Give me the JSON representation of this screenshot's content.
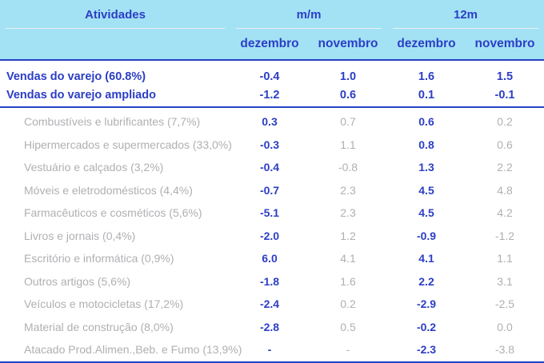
{
  "chart_data": {
    "type": "table",
    "row_header": "Atividades",
    "column_groups": [
      {
        "label": "m/m"
      },
      {
        "label": "12m"
      }
    ],
    "columns": [
      "dezembro",
      "novembro",
      "dezembro",
      "novembro"
    ],
    "summary_rows": [
      {
        "label": "Vendas do varejo (60.8%)",
        "values": [
          "-0.4",
          "1.0",
          "1.6",
          "1.5"
        ]
      },
      {
        "label": "Vendas do varejo ampliado",
        "values": [
          "-1.2",
          "0.6",
          "0.1",
          "-0.1"
        ]
      }
    ],
    "detail_rows": [
      {
        "label": "Combustíveis e lubrificantes (7,7%)",
        "values": [
          "0.3",
          "0.7",
          "0.6",
          "0.2"
        ]
      },
      {
        "label": "Hipermercados e supermercados (33,0%)",
        "values": [
          "-0.3",
          "1.1",
          "0.8",
          "0.6"
        ]
      },
      {
        "label": "Vestuário e calçados (3,2%)",
        "values": [
          "-0.4",
          "-0.8",
          "1.3",
          "2.2"
        ]
      },
      {
        "label": "Móveis e eletrodomésticos (4,4%)",
        "values": [
          "-0.7",
          "2.3",
          "4.5",
          "4.8"
        ]
      },
      {
        "label": "Farmacêuticos e cosméticos (5,6%)",
        "values": [
          "-5.1",
          "2.3",
          "4.5",
          "4.2"
        ]
      },
      {
        "label": "Livros e jornais (0,4%)",
        "values": [
          "-2.0",
          "1.2",
          "-0.9",
          "-1.2"
        ]
      },
      {
        "label": "Escritório e informática (0,9%)",
        "values": [
          "6.0",
          "4.1",
          "4.1",
          "1.1"
        ]
      },
      {
        "label": "Outros artigos (5,6%)",
        "values": [
          "-1.8",
          "1.6",
          "2.2",
          "3.1"
        ]
      },
      {
        "label": "Veículos e motocicletas (17,2%)",
        "values": [
          "-2.4",
          "0.2",
          "-2.9",
          "-2.5"
        ]
      },
      {
        "label": "Material de construção (8,0%)",
        "values": [
          "-2.8",
          "0.5",
          "-0.2",
          "0.0"
        ]
      },
      {
        "label": "Atacado Prod.Alimen.,Beb. e Fumo (13,9%)",
        "values": [
          "-",
          "-",
          "-2.3",
          "-3.8"
        ]
      }
    ]
  },
  "colors": {
    "header_bg": "#a3e2f4",
    "accent_blue": "#2c3ec6",
    "rule_blue": "#2742c4",
    "muted_gray": "#b0b0b4",
    "header_underline": "#e9f0f4"
  }
}
